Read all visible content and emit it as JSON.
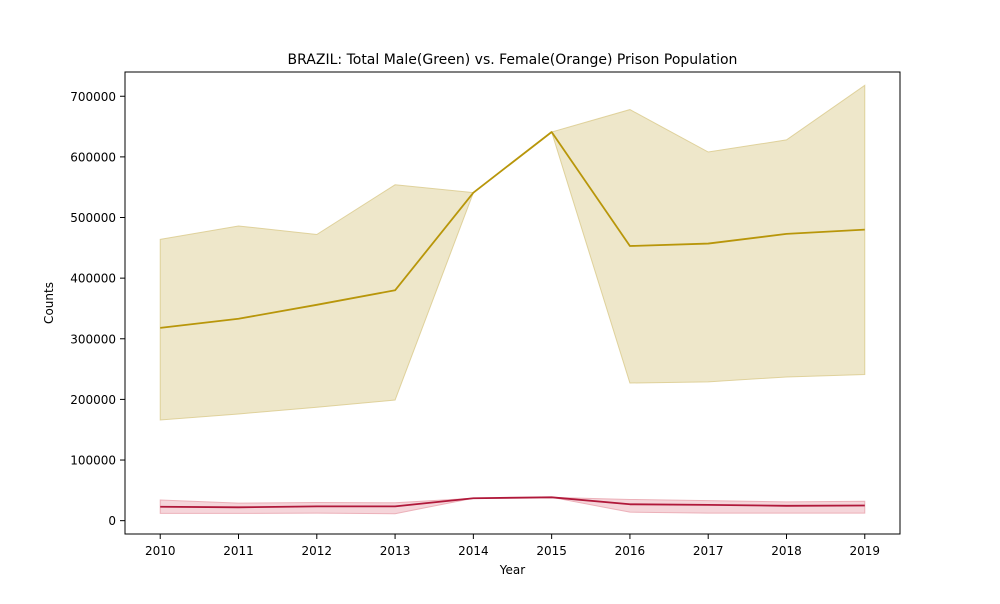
{
  "chart_data": {
    "type": "line",
    "title": "BRAZIL: Total Male(Green) vs. Female(Orange) Prison Population",
    "xlabel": "Year",
    "ylabel": "Counts",
    "x": [
      2010,
      2011,
      2012,
      2013,
      2014,
      2015,
      2016,
      2017,
      2018,
      2019
    ],
    "xlim": [
      2009.55,
      2019.45
    ],
    "ylim": [
      -22000,
      740000
    ],
    "yticks": [
      0,
      100000,
      200000,
      300000,
      400000,
      500000,
      600000,
      700000
    ],
    "grid": false,
    "legend": "none",
    "series": [
      {
        "color": "#b8960a",
        "fill_color": "#d9c98a",
        "values": [
          318000,
          333000,
          356000,
          380000,
          541000,
          641000,
          453000,
          457000,
          473000,
          480000
        ],
        "band_low": [
          166000,
          176000,
          187000,
          199000,
          541000,
          641000,
          227000,
          229000,
          237000,
          241000
        ],
        "band_high": [
          464000,
          486000,
          472000,
          554000,
          541000,
          641000,
          678000,
          608000,
          628000,
          718000
        ]
      },
      {
        "color": "#b0183a",
        "fill_color": "#e8a2ad",
        "values": [
          23000,
          22000,
          23500,
          23500,
          37000,
          38500,
          27000,
          26000,
          24500,
          25000
        ],
        "band_low": [
          12000,
          12000,
          12500,
          11500,
          37000,
          38500,
          14000,
          12500,
          12500,
          12500
        ],
        "band_high": [
          34000,
          29000,
          30000,
          29500,
          37000,
          38500,
          35000,
          33000,
          31000,
          32000
        ]
      }
    ]
  }
}
